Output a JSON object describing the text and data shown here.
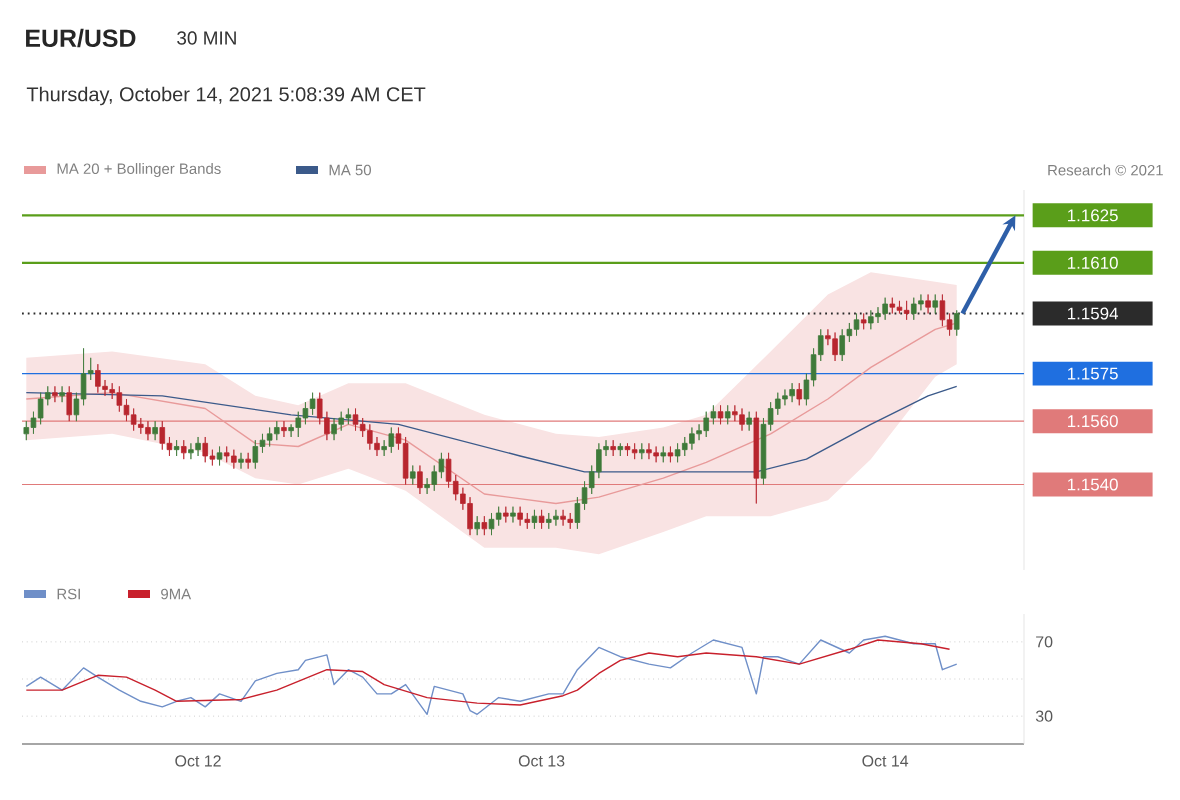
{
  "chart_data": [
    {
      "type": "candlestick",
      "title": "EUR/USD",
      "subtitle": "30 MIN",
      "annotations": [
        "Thursday, October 14, 2021 5:08:39 AM CET",
        "Research © 2021"
      ],
      "x": [
        "2021-10-11T12:00",
        "2021-10-11T12:30",
        "2021-10-11T13:00",
        "2021-10-11T13:30",
        "2021-10-11T14:00",
        "2021-10-11T14:30",
        "2021-10-11T15:00",
        "2021-10-11T15:30",
        "2021-10-11T16:00",
        "2021-10-11T16:30",
        "2021-10-11T17:00",
        "2021-10-11T17:30",
        "2021-10-11T18:00",
        "2021-10-11T18:30",
        "2021-10-11T19:00",
        "2021-10-11T19:30",
        "2021-10-11T20:00",
        "2021-10-11T20:30",
        "2021-10-11T21:00",
        "2021-10-11T21:30",
        "2021-10-11T22:00",
        "2021-10-11T22:30",
        "2021-10-11T23:00",
        "2021-10-11T23:30",
        "2021-10-12T00:00",
        "2021-10-12T00:30",
        "2021-10-12T01:00",
        "2021-10-12T01:30",
        "2021-10-12T02:00",
        "2021-10-12T02:30",
        "2021-10-12T03:00",
        "2021-10-12T03:30",
        "2021-10-12T04:00",
        "2021-10-12T04:30",
        "2021-10-12T05:00",
        "2021-10-12T05:30",
        "2021-10-12T06:00",
        "2021-10-12T06:30",
        "2021-10-12T07:00",
        "2021-10-12T07:30",
        "2021-10-12T08:00",
        "2021-10-12T08:30",
        "2021-10-12T09:00",
        "2021-10-12T09:30",
        "2021-10-12T10:00",
        "2021-10-12T10:30",
        "2021-10-12T11:00",
        "2021-10-12T11:30",
        "2021-10-12T12:00",
        "2021-10-12T12:30",
        "2021-10-12T13:00",
        "2021-10-12T13:30",
        "2021-10-12T14:00",
        "2021-10-12T14:30",
        "2021-10-12T15:00",
        "2021-10-12T15:30",
        "2021-10-12T16:00",
        "2021-10-12T16:30",
        "2021-10-12T17:00",
        "2021-10-12T17:30",
        "2021-10-12T18:00",
        "2021-10-12T18:30",
        "2021-10-12T19:00",
        "2021-10-12T19:30",
        "2021-10-12T20:00",
        "2021-10-12T20:30",
        "2021-10-12T21:00",
        "2021-10-12T21:30",
        "2021-10-12T22:00",
        "2021-10-12T22:30",
        "2021-10-12T23:00",
        "2021-10-12T23:30",
        "2021-10-13T00:00",
        "2021-10-13T00:30",
        "2021-10-13T01:00",
        "2021-10-13T01:30",
        "2021-10-13T02:00",
        "2021-10-13T02:30",
        "2021-10-13T03:00",
        "2021-10-13T03:30",
        "2021-10-13T04:00",
        "2021-10-13T04:30",
        "2021-10-13T05:00",
        "2021-10-13T05:30",
        "2021-10-13T06:00",
        "2021-10-13T06:30",
        "2021-10-13T07:00",
        "2021-10-13T07:30",
        "2021-10-13T08:00",
        "2021-10-13T08:30",
        "2021-10-13T09:00",
        "2021-10-13T09:30",
        "2021-10-13T10:00",
        "2021-10-13T10:30",
        "2021-10-13T11:00",
        "2021-10-13T11:30",
        "2021-10-13T12:00",
        "2021-10-13T12:30",
        "2021-10-13T13:00",
        "2021-10-13T13:30",
        "2021-10-13T14:00",
        "2021-10-13T14:30",
        "2021-10-13T15:00",
        "2021-10-13T15:30",
        "2021-10-13T16:00",
        "2021-10-13T16:30",
        "2021-10-13T17:00",
        "2021-10-13T17:30",
        "2021-10-13T18:00",
        "2021-10-13T18:30",
        "2021-10-13T19:00",
        "2021-10-13T19:30",
        "2021-10-13T20:00",
        "2021-10-13T20:30",
        "2021-10-13T21:00",
        "2021-10-13T21:30",
        "2021-10-13T22:00",
        "2021-10-13T22:30",
        "2021-10-13T23:00",
        "2021-10-13T23:30",
        "2021-10-14T00:00",
        "2021-10-14T00:30",
        "2021-10-14T01:00",
        "2021-10-14T01:30",
        "2021-10-14T02:00",
        "2021-10-14T02:30",
        "2021-10-14T03:00",
        "2021-10-14T03:30",
        "2021-10-14T04:00",
        "2021-10-14T04:30",
        "2021-10-14T05:00"
      ],
      "ohlc": [
        [
          1.1556,
          1.156,
          1.1554,
          1.1558
        ],
        [
          1.1558,
          1.1563,
          1.1556,
          1.1561
        ],
        [
          1.1561,
          1.1569,
          1.1559,
          1.1567
        ],
        [
          1.1567,
          1.1571,
          1.1565,
          1.1569
        ],
        [
          1.1569,
          1.1571,
          1.1566,
          1.1568
        ],
        [
          1.1568,
          1.1571,
          1.1566,
          1.1569
        ],
        [
          1.1569,
          1.1571,
          1.156,
          1.1562
        ],
        [
          1.1562,
          1.1569,
          1.156,
          1.1567
        ],
        [
          1.1567,
          1.1583,
          1.1565,
          1.1575
        ],
        [
          1.1575,
          1.158,
          1.1573,
          1.1576
        ],
        [
          1.1576,
          1.1578,
          1.1569,
          1.1571
        ],
        [
          1.1571,
          1.1573,
          1.1568,
          1.157
        ],
        [
          1.157,
          1.1572,
          1.1567,
          1.1569
        ],
        [
          1.1569,
          1.1571,
          1.1563,
          1.1565
        ],
        [
          1.1565,
          1.1567,
          1.156,
          1.1562
        ],
        [
          1.1562,
          1.1564,
          1.1557,
          1.1559
        ],
        [
          1.1559,
          1.1561,
          1.1556,
          1.1558
        ],
        [
          1.1558,
          1.156,
          1.1554,
          1.1556
        ],
        [
          1.1556,
          1.156,
          1.1554,
          1.1558
        ],
        [
          1.1558,
          1.156,
          1.1551,
          1.1553
        ],
        [
          1.1553,
          1.1555,
          1.1549,
          1.1551
        ],
        [
          1.1551,
          1.1554,
          1.1549,
          1.1552
        ],
        [
          1.1552,
          1.1554,
          1.1548,
          1.155
        ],
        [
          1.155,
          1.1553,
          1.1548,
          1.1551
        ],
        [
          1.1551,
          1.1555,
          1.1549,
          1.1553
        ],
        [
          1.1553,
          1.1555,
          1.1547,
          1.1549
        ],
        [
          1.1549,
          1.1551,
          1.1546,
          1.1548
        ],
        [
          1.1548,
          1.1552,
          1.1546,
          1.155
        ],
        [
          1.155,
          1.1552,
          1.1547,
          1.1549
        ],
        [
          1.1549,
          1.1551,
          1.1545,
          1.1547
        ],
        [
          1.1547,
          1.155,
          1.1545,
          1.1548
        ],
        [
          1.1548,
          1.155,
          1.1545,
          1.1547
        ],
        [
          1.1547,
          1.1554,
          1.1545,
          1.1552
        ],
        [
          1.1552,
          1.1556,
          1.155,
          1.1554
        ],
        [
          1.1554,
          1.1558,
          1.1552,
          1.1556
        ],
        [
          1.1556,
          1.156,
          1.1554,
          1.1558
        ],
        [
          1.1558,
          1.156,
          1.1555,
          1.1557
        ],
        [
          1.1557,
          1.1559,
          1.1555,
          1.1558
        ],
        [
          1.1558,
          1.1563,
          1.1555,
          1.1561
        ],
        [
          1.1561,
          1.1566,
          1.1559,
          1.1564
        ],
        [
          1.1564,
          1.1569,
          1.1562,
          1.1567
        ],
        [
          1.1567,
          1.1569,
          1.1559,
          1.1561
        ],
        [
          1.1561,
          1.1563,
          1.1554,
          1.1556
        ],
        [
          1.1556,
          1.1561,
          1.1554,
          1.1559
        ],
        [
          1.1559,
          1.1563,
          1.1557,
          1.1561
        ],
        [
          1.1561,
          1.1564,
          1.1559,
          1.1562
        ],
        [
          1.1562,
          1.1564,
          1.1557,
          1.1559
        ],
        [
          1.1559,
          1.1561,
          1.1555,
          1.1557
        ],
        [
          1.1557,
          1.1559,
          1.1551,
          1.1553
        ],
        [
          1.1553,
          1.1555,
          1.1549,
          1.1551
        ],
        [
          1.1551,
          1.1554,
          1.1549,
          1.1552
        ],
        [
          1.1552,
          1.1558,
          1.155,
          1.1556
        ],
        [
          1.1556,
          1.1558,
          1.1551,
          1.1553
        ],
        [
          1.1553,
          1.1555,
          1.154,
          1.1542
        ],
        [
          1.1542,
          1.1546,
          1.154,
          1.1544
        ],
        [
          1.1544,
          1.1546,
          1.1537,
          1.1539
        ],
        [
          1.1539,
          1.1542,
          1.1537,
          1.154
        ],
        [
          1.154,
          1.1546,
          1.1538,
          1.1544
        ],
        [
          1.1544,
          1.155,
          1.1542,
          1.1548
        ],
        [
          1.1548,
          1.155,
          1.1539,
          1.1541
        ],
        [
          1.1541,
          1.1543,
          1.1535,
          1.1537
        ],
        [
          1.1537,
          1.1539,
          1.1532,
          1.1534
        ],
        [
          1.1534,
          1.1536,
          1.1524,
          1.1526
        ],
        [
          1.1526,
          1.153,
          1.1524,
          1.1528
        ],
        [
          1.1528,
          1.153,
          1.1524,
          1.1526
        ],
        [
          1.1526,
          1.1531,
          1.1524,
          1.1529
        ],
        [
          1.1529,
          1.1533,
          1.1527,
          1.1531
        ],
        [
          1.1531,
          1.1533,
          1.1528,
          1.153
        ],
        [
          1.153,
          1.1533,
          1.1528,
          1.1531
        ],
        [
          1.1531,
          1.1533,
          1.1527,
          1.1529
        ],
        [
          1.1529,
          1.1531,
          1.1526,
          1.1528
        ],
        [
          1.1528,
          1.1532,
          1.1526,
          1.153
        ],
        [
          1.153,
          1.1532,
          1.1526,
          1.1528
        ],
        [
          1.1528,
          1.1531,
          1.1526,
          1.1529
        ],
        [
          1.1529,
          1.1532,
          1.1527,
          1.153
        ],
        [
          1.153,
          1.1532,
          1.1527,
          1.1529
        ],
        [
          1.1529,
          1.1531,
          1.1526,
          1.1528
        ],
        [
          1.1528,
          1.1536,
          1.1526,
          1.1534
        ],
        [
          1.1534,
          1.1541,
          1.1532,
          1.1539
        ],
        [
          1.1539,
          1.1546,
          1.1537,
          1.1544
        ],
        [
          1.1544,
          1.1553,
          1.1542,
          1.1551
        ],
        [
          1.1551,
          1.1554,
          1.1549,
          1.1552
        ],
        [
          1.1552,
          1.1554,
          1.1549,
          1.1551
        ],
        [
          1.1551,
          1.1553,
          1.1549,
          1.1552
        ],
        [
          1.1552,
          1.1553,
          1.1549,
          1.1551
        ],
        [
          1.1551,
          1.1553,
          1.1548,
          1.155
        ],
        [
          1.155,
          1.1553,
          1.1548,
          1.1551
        ],
        [
          1.1551,
          1.1553,
          1.1548,
          1.155
        ],
        [
          1.155,
          1.1552,
          1.1547,
          1.1549
        ],
        [
          1.1549,
          1.1552,
          1.1547,
          1.155
        ],
        [
          1.155,
          1.1552,
          1.1547,
          1.1549
        ],
        [
          1.1549,
          1.1553,
          1.1547,
          1.1551
        ],
        [
          1.1551,
          1.1555,
          1.1549,
          1.1553
        ],
        [
          1.1553,
          1.1558,
          1.1551,
          1.1556
        ],
        [
          1.1556,
          1.1559,
          1.1554,
          1.1557
        ],
        [
          1.1557,
          1.1563,
          1.1555,
          1.1561
        ],
        [
          1.1561,
          1.1565,
          1.1559,
          1.1563
        ],
        [
          1.1563,
          1.1565,
          1.1559,
          1.1561
        ],
        [
          1.1561,
          1.1565,
          1.1559,
          1.1563
        ],
        [
          1.1563,
          1.1565,
          1.156,
          1.1562
        ],
        [
          1.1562,
          1.1564,
          1.1557,
          1.1559
        ],
        [
          1.1559,
          1.1563,
          1.1557,
          1.1561
        ],
        [
          1.1561,
          1.1563,
          1.1534,
          1.1542
        ],
        [
          1.1542,
          1.1561,
          1.154,
          1.1559
        ],
        [
          1.1559,
          1.1566,
          1.1557,
          1.1564
        ],
        [
          1.1564,
          1.1569,
          1.1562,
          1.1567
        ],
        [
          1.1567,
          1.157,
          1.1565,
          1.1568
        ],
        [
          1.1568,
          1.1572,
          1.1566,
          1.157
        ],
        [
          1.157,
          1.1572,
          1.1565,
          1.1567
        ],
        [
          1.1567,
          1.1575,
          1.1565,
          1.1573
        ],
        [
          1.1573,
          1.1583,
          1.1571,
          1.1581
        ],
        [
          1.1581,
          1.1589,
          1.1579,
          1.1587
        ],
        [
          1.1587,
          1.1589,
          1.1584,
          1.1586
        ],
        [
          1.1586,
          1.1588,
          1.1579,
          1.1581
        ],
        [
          1.1581,
          1.1589,
          1.1579,
          1.1587
        ],
        [
          1.1587,
          1.1591,
          1.1585,
          1.1589
        ],
        [
          1.1589,
          1.1594,
          1.1587,
          1.1592
        ],
        [
          1.1592,
          1.1594,
          1.1589,
          1.1591
        ],
        [
          1.1591,
          1.1595,
          1.1589,
          1.1593
        ],
        [
          1.1593,
          1.1596,
          1.1591,
          1.1594
        ],
        [
          1.1594,
          1.1599,
          1.1592,
          1.1597
        ],
        [
          1.1597,
          1.1599,
          1.1594,
          1.1596
        ],
        [
          1.1596,
          1.1598,
          1.1594,
          1.1595
        ],
        [
          1.1595,
          1.1598,
          1.1592,
          1.1594
        ],
        [
          1.1594,
          1.1599,
          1.1592,
          1.1597
        ],
        [
          1.1597,
          1.16,
          1.1595,
          1.1598
        ],
        [
          1.1598,
          1.16,
          1.1594,
          1.1596
        ],
        [
          1.1596,
          1.16,
          1.1594,
          1.1598
        ],
        [
          1.1598,
          1.16,
          1.159,
          1.1592
        ],
        [
          1.1592,
          1.1594,
          1.1587,
          1.1589
        ],
        [
          1.1589,
          1.1595,
          1.1587,
          1.1594
        ]
      ],
      "series": [
        {
          "name": "MA 20 + Bollinger Bands",
          "type": "line",
          "color": "#e89a9a",
          "x": [
            "2021-10-11T12:00",
            "2021-10-11T18:00",
            "2021-10-12T00:30",
            "2021-10-12T04:00",
            "2021-10-12T07:00",
            "2021-10-12T10:30",
            "2021-10-12T14:30",
            "2021-10-12T20:00",
            "2021-10-13T01:00",
            "2021-10-13T04:00",
            "2021-10-13T08:30",
            "2021-10-13T11:30",
            "2021-10-13T16:00",
            "2021-10-13T20:00",
            "2021-10-13T23:00",
            "2021-10-14T03:30",
            "2021-10-14T05:00"
          ],
          "values": [
            1.1567,
            1.1569,
            1.1564,
            1.1553,
            1.1552,
            1.1559,
            1.1554,
            1.1537,
            1.1534,
            1.1536,
            1.1542,
            1.1547,
            1.1556,
            1.1567,
            1.1577,
            1.1589,
            1.1591
          ],
          "upper": [
            1.158,
            1.1582,
            1.1578,
            1.1568,
            1.1565,
            1.1572,
            1.1572,
            1.1562,
            1.1556,
            1.1555,
            1.1558,
            1.1562,
            1.1582,
            1.16,
            1.1607,
            1.1604,
            1.1603
          ],
          "lower": [
            1.1554,
            1.1556,
            1.155,
            1.1542,
            1.154,
            1.1545,
            1.1538,
            1.152,
            1.152,
            1.1518,
            1.1525,
            1.153,
            1.153,
            1.1535,
            1.1548,
            1.1574,
            1.1578
          ]
        },
        {
          "name": "MA 50",
          "type": "line",
          "color": "#3b5a8a",
          "x": [
            "2021-10-11T12:00",
            "2021-10-11T21:30",
            "2021-10-12T06:30",
            "2021-10-12T14:00",
            "2021-10-12T22:30",
            "2021-10-13T03:00",
            "2021-10-13T08:30",
            "2021-10-13T15:00",
            "2021-10-13T18:30",
            "2021-10-13T23:00",
            "2021-10-14T03:00",
            "2021-10-14T05:00"
          ],
          "values": [
            1.1569,
            1.1568,
            1.1562,
            1.1559,
            1.1549,
            1.1544,
            1.1544,
            1.1544,
            1.1548,
            1.1559,
            1.1568,
            1.1571
          ]
        }
      ],
      "xlim": [
        "2021-10-11T11:42",
        "2021-10-14T09:42"
      ],
      "ylim": [
        1.1513,
        1.1633
      ],
      "yticks": [
        {
          "value": 1.154,
          "label": "1.1540"
        },
        {
          "value": 1.156,
          "label": "1.1560"
        },
        {
          "value": 1.1575,
          "label": "1.1575"
        },
        {
          "value": 1.1594,
          "label": "1.1594"
        },
        {
          "value": 1.161,
          "label": "1.1610"
        },
        {
          "value": 1.1625,
          "label": "1.1625"
        }
      ],
      "ref_lines": [
        {
          "axis": "y",
          "value": 1.1625,
          "color": "#5a9e1a",
          "line_style": "solid"
        },
        {
          "axis": "y",
          "value": 1.161,
          "color": "#5a9e1a",
          "line_style": "solid"
        },
        {
          "axis": "y",
          "value": 1.1594,
          "color": "#2b2b2b",
          "line_style": "dotted"
        },
        {
          "axis": "y",
          "value": 1.1575,
          "color": "#1f6fe0",
          "line_style": "solid"
        },
        {
          "axis": "y",
          "value": 1.156,
          "color": "#e07a7a",
          "line_style": "solid"
        },
        {
          "axis": "y",
          "value": 1.154,
          "color": "#e07a7a",
          "line_style": "solid"
        }
      ],
      "legend": "top left",
      "tick_labels": "y"
    },
    {
      "type": "line",
      "series": [
        {
          "name": "RSI",
          "color": "#6f8fc8",
          "x": [
            "2021-10-11T12:00",
            "2021-10-11T13:00",
            "2021-10-11T14:30",
            "2021-10-11T16:00",
            "2021-10-11T17:00",
            "2021-10-11T18:30",
            "2021-10-11T20:00",
            "2021-10-11T21:30",
            "2021-10-11T22:30",
            "2021-10-11T23:30",
            "2021-10-12T00:30",
            "2021-10-12T01:30",
            "2021-10-12T03:00",
            "2021-10-12T04:00",
            "2021-10-12T05:30",
            "2021-10-12T07:00",
            "2021-10-12T07:30",
            "2021-10-12T09:00",
            "2021-10-12T09:30",
            "2021-10-12T10:30",
            "2021-10-12T11:30",
            "2021-10-12T12:30",
            "2021-10-12T13:30",
            "2021-10-12T14:30",
            "2021-10-12T16:00",
            "2021-10-12T16:30",
            "2021-10-12T18:30",
            "2021-10-12T19:00",
            "2021-10-12T19:30",
            "2021-10-12T21:00",
            "2021-10-12T22:30",
            "2021-10-13T00:30",
            "2021-10-13T01:30",
            "2021-10-13T02:30",
            "2021-10-13T04:00",
            "2021-10-13T05:30",
            "2021-10-13T07:30",
            "2021-10-13T09:00",
            "2021-10-13T10:30",
            "2021-10-13T12:00",
            "2021-10-13T14:00",
            "2021-10-13T15:00",
            "2021-10-13T15:30",
            "2021-10-13T16:30",
            "2021-10-13T18:00",
            "2021-10-13T19:30",
            "2021-10-13T21:30",
            "2021-10-13T22:30",
            "2021-10-14T00:00",
            "2021-10-14T02:00",
            "2021-10-14T03:30",
            "2021-10-14T04:00",
            "2021-10-14T05:00"
          ],
          "values": [
            46,
            51,
            44,
            56,
            51,
            44,
            38,
            35,
            38,
            40,
            35,
            42,
            38,
            49,
            53,
            55,
            60,
            63,
            47,
            55,
            51,
            42,
            42,
            47,
            31,
            46,
            42,
            33,
            31,
            40,
            38,
            42,
            42,
            55,
            67,
            62,
            58,
            56,
            64,
            71,
            67,
            42,
            62,
            62,
            58,
            71,
            64,
            71,
            73,
            69,
            69,
            55,
            58
          ]
        },
        {
          "name": "9MA",
          "color": "#c8202c",
          "x": [
            "2021-10-11T12:00",
            "2021-10-11T14:30",
            "2021-10-11T17:00",
            "2021-10-11T19:00",
            "2021-10-11T21:00",
            "2021-10-11T22:30",
            "2021-10-12T03:00",
            "2021-10-12T05:30",
            "2021-10-12T09:00",
            "2021-10-12T11:30",
            "2021-10-12T13:00",
            "2021-10-12T16:00",
            "2021-10-12T19:30",
            "2021-10-12T22:30",
            "2021-10-13T01:30",
            "2021-10-13T02:30",
            "2021-10-13T04:00",
            "2021-10-13T05:30",
            "2021-10-13T07:30",
            "2021-10-13T09:30",
            "2021-10-13T11:30",
            "2021-10-13T15:00",
            "2021-10-13T18:00",
            "2021-10-13T21:30",
            "2021-10-13T23:30",
            "2021-10-14T02:30",
            "2021-10-14T04:30"
          ],
          "values": [
            44,
            44,
            52,
            51,
            44,
            38,
            39,
            44,
            55,
            54,
            47,
            40,
            37,
            36,
            41,
            44,
            53,
            60,
            64,
            62,
            64,
            62,
            58,
            66,
            71,
            69,
            66
          ]
        }
      ],
      "xlim": [
        "2021-10-11T11:42",
        "2021-10-14T09:42"
      ],
      "xticks": [
        {
          "value": "2021-10-12",
          "label": "Oct 12"
        },
        {
          "value": "2021-10-13",
          "label": "Oct 13"
        },
        {
          "value": "2021-10-14",
          "label": "Oct 14"
        }
      ],
      "ylim": [
        15,
        85
      ],
      "yticks": [
        30,
        {
          "value": 50,
          "label": null
        },
        70
      ],
      "grid": "y",
      "legend": "top left"
    }
  ]
}
